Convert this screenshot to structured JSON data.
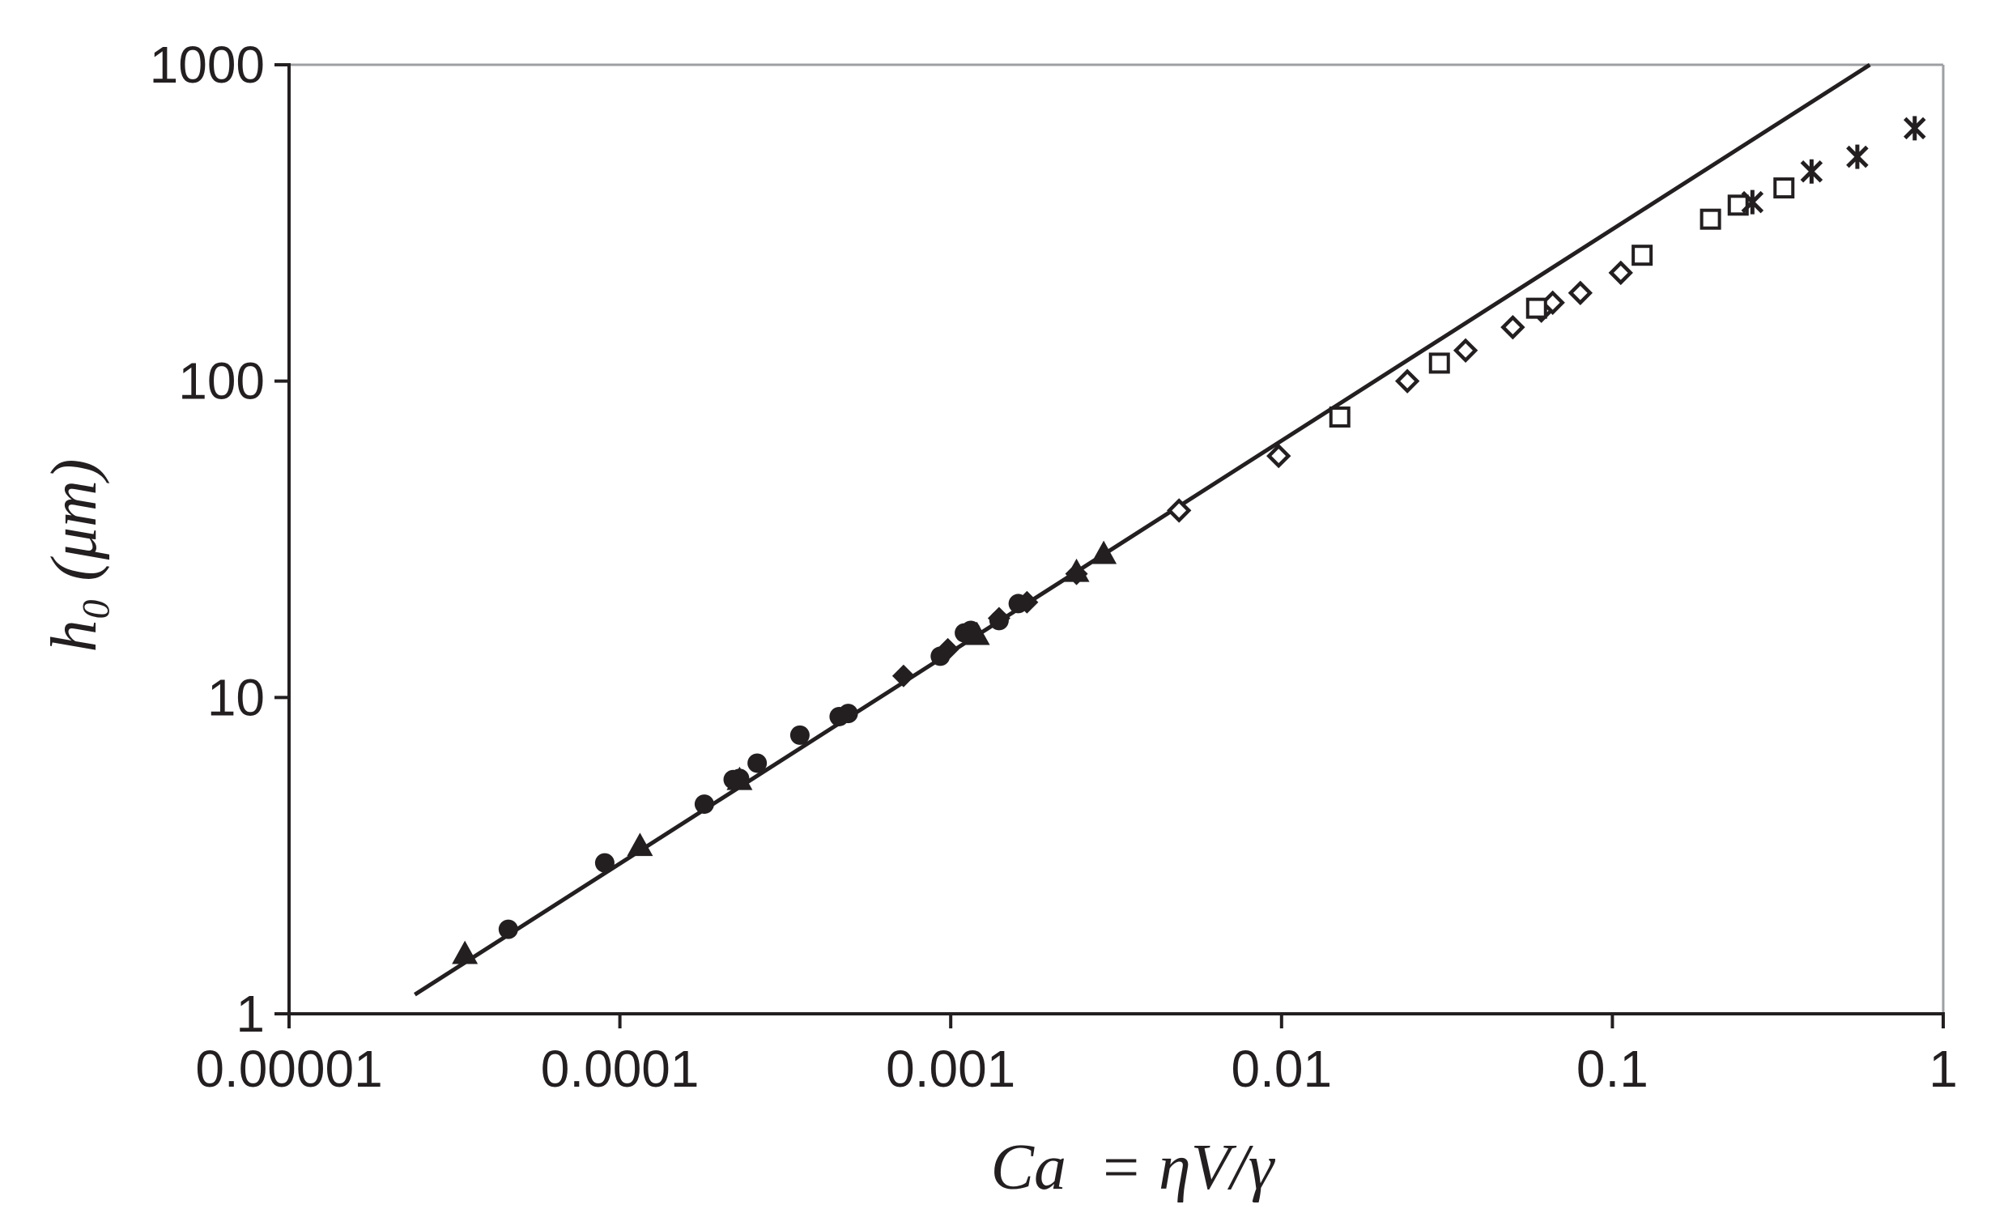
{
  "chart_data": {
    "type": "scatter",
    "title": "",
    "xlabel": "Ca  = ηV/γ",
    "ylabel": "h₀ (μm)",
    "xscale": "log",
    "yscale": "log",
    "xlim": [
      1e-05,
      1
    ],
    "ylim": [
      1,
      1000
    ],
    "x_ticks": [
      "0.00001",
      "0.0001",
      "0.001",
      "0.01",
      "0.1",
      "1"
    ],
    "y_ticks": [
      "1",
      "10",
      "100",
      "1000"
    ],
    "grid": false,
    "legend": "none",
    "colors": {
      "ink": "#231f20",
      "right_top_border": "#9d9fa2"
    },
    "fit_line": {
      "x": [
        2.4e-05,
        0.6
      ],
      "y": [
        1.15,
        1000
      ]
    },
    "series": [
      {
        "marker": "filled-circle",
        "points": [
          [
            4.6e-05,
            1.85
          ],
          [
            9e-05,
            3.0
          ],
          [
            0.00018,
            4.6
          ],
          [
            0.00022,
            5.5
          ],
          [
            0.00023,
            5.55
          ],
          [
            0.00026,
            6.2
          ],
          [
            0.00035,
            7.6
          ],
          [
            0.00046,
            8.7
          ],
          [
            0.00049,
            8.9
          ],
          [
            0.00093,
            13.5
          ],
          [
            0.0011,
            16.0
          ],
          [
            0.00115,
            16.3
          ],
          [
            0.0014,
            17.5
          ],
          [
            0.0016,
            19.8
          ]
        ]
      },
      {
        "marker": "filled-triangle",
        "points": [
          [
            3.4e-05,
            1.55
          ],
          [
            0.000115,
            3.4
          ],
          [
            0.00023,
            5.5
          ],
          [
            0.0012,
            15.8
          ],
          [
            0.0024,
            25.0
          ],
          [
            0.0029,
            28.5
          ]
        ]
      },
      {
        "marker": "filled-diamond",
        "points": [
          [
            0.00072,
            11.7
          ],
          [
            0.00098,
            14.2
          ],
          [
            0.0014,
            17.8
          ],
          [
            0.0017,
            20.0
          ],
          [
            0.0024,
            24.6
          ]
        ]
      },
      {
        "marker": "open-diamond",
        "points": [
          [
            0.0049,
            39.0
          ],
          [
            0.0098,
            58.0
          ],
          [
            0.024,
            100.0
          ],
          [
            0.036,
            125.0
          ],
          [
            0.05,
            148.0
          ],
          [
            0.061,
            167.0
          ],
          [
            0.066,
            177.0
          ],
          [
            0.08,
            190.0
          ],
          [
            0.106,
            220.0
          ]
        ]
      },
      {
        "marker": "open-square",
        "points": [
          [
            0.015,
            77.0
          ],
          [
            0.03,
            114.0
          ],
          [
            0.059,
            170.0
          ],
          [
            0.123,
            250.0
          ],
          [
            0.198,
            325.0
          ],
          [
            0.24,
            360.0
          ],
          [
            0.33,
            408.0
          ]
        ]
      },
      {
        "marker": "asterisk",
        "points": [
          [
            0.265,
            368.0
          ],
          [
            0.4,
            460.0
          ],
          [
            0.55,
            512.0
          ],
          [
            0.82,
            630.0
          ]
        ]
      }
    ]
  }
}
